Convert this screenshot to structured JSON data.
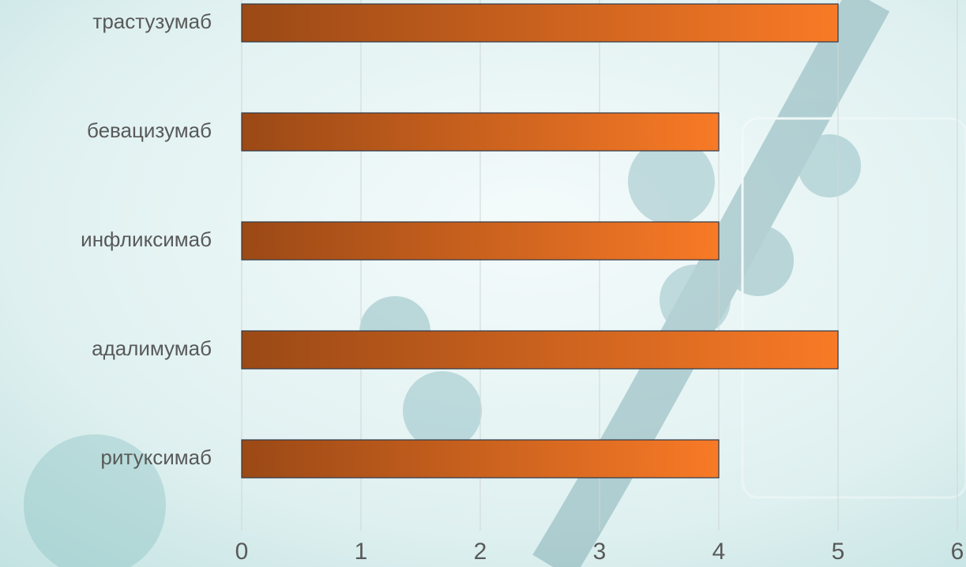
{
  "chart_data": {
    "type": "barh",
    "categories": [
      "трастузумаб",
      "бевацизумаб",
      "инфликсимаб",
      "адалимумаб",
      "ритуксимаб"
    ],
    "values": [
      5,
      4,
      4,
      5,
      4
    ],
    "gradient": [
      "#9b4916",
      "#f87a26"
    ],
    "xlim": [
      0,
      6
    ],
    "xticks": [
      0,
      1,
      2,
      3,
      4,
      5,
      6
    ],
    "grid": true
  }
}
